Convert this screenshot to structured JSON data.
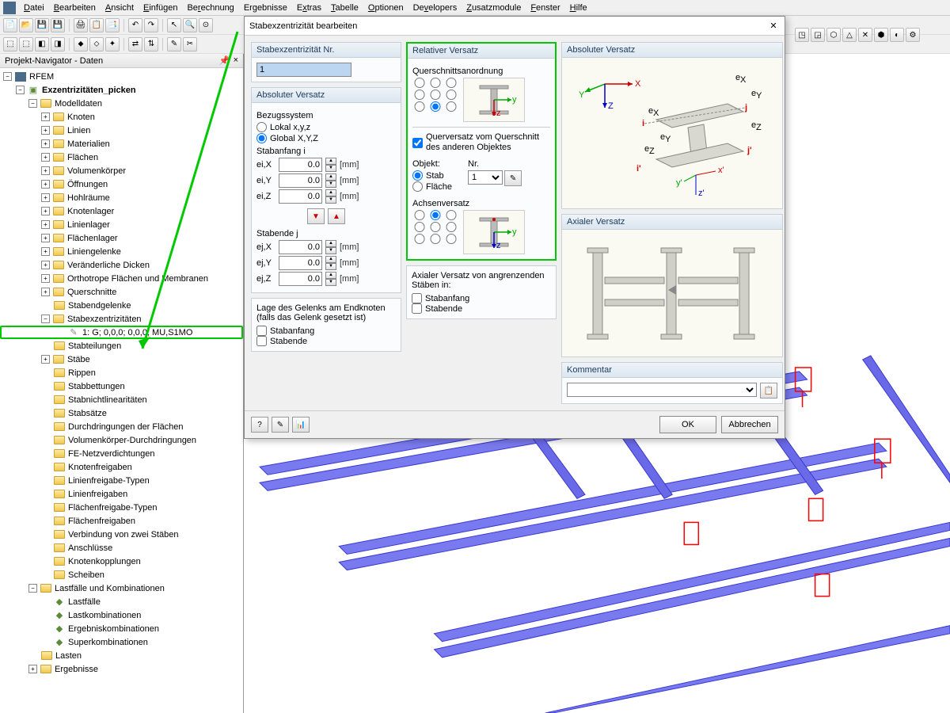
{
  "menu": [
    "Datei",
    "Bearbeiten",
    "Ansicht",
    "Einfügen",
    "Berechnung",
    "Ergebnisse",
    "Extras",
    "Tabelle",
    "Optionen",
    "Developers",
    "Zusatzmodule",
    "Fenster",
    "Hilfe"
  ],
  "navigator": {
    "title": "Projekt-Navigator - Daten",
    "root": "RFEM",
    "project": "Exzentrizitäten_picken",
    "modelldaten": "Modelldaten",
    "items1": [
      "Knoten",
      "Linien",
      "Materialien",
      "Flächen",
      "Volumenkörper",
      "Öffnungen",
      "Hohlräume",
      "Knotenlager",
      "Linienlager",
      "Flächenlager",
      "Liniengelenke",
      "Veränderliche Dicken",
      "Orthotrope Flächen und Membranen"
    ],
    "querschnitte": "Querschnitte",
    "stabendgelenke": "Stabendgelenke",
    "stabexz": "Stabexzentrizitäten",
    "stabexz_item": "1: G; 0,0,0; 0,0,0; MU,S1MO",
    "stabteilungen": "Stabteilungen",
    "items2": [
      "Stäbe",
      "Rippen",
      "Stabbettungen",
      "Stabnichtlinearitäten",
      "Stabsätze",
      "Durchdringungen der Flächen",
      "Volumenkörper-Durchdringungen",
      "FE-Netzverdichtungen",
      "Knotenfreigaben",
      "Linienfreigabe-Typen",
      "Linienfreigaben",
      "Flächenfreigabe-Typen",
      "Flächenfreigaben",
      "Verbindung von zwei Stäben",
      "Anschlüsse",
      "Knotenkopplungen",
      "Scheiben"
    ],
    "lastfalle_group": "Lastfälle und Kombinationen",
    "items3": [
      "Lastfälle",
      "Lastkombinationen",
      "Ergebniskombinationen",
      "Superkombinationen"
    ],
    "lasten": "Lasten",
    "ergebnisse": "Ergebnisse"
  },
  "dialog": {
    "title": "Stabexzentrizität bearbeiten",
    "nr_group": "Stabexzentrizität Nr.",
    "nr_value": "1",
    "abs_versatz": "Absoluter Versatz",
    "bezugssystem": "Bezugssystem",
    "lokal": "Lokal x,y,z",
    "global": "Global X,Y,Z",
    "stabanfang_i": "Stabanfang i",
    "stabende_j": "Stabende j",
    "eix": "ei,X",
    "eiy": "ei,Y",
    "eiz": "ei,Z",
    "ejx": "ej,X",
    "ejy": "ej,Y",
    "ejz": "ej,Z",
    "val": "0.0",
    "unit": "[mm]",
    "lage_gelenk": "Lage des Gelenks am Endknoten (falls das Gelenk gesetzt ist)",
    "cb_stabanfang": "Stabanfang",
    "cb_stabende": "Stabende",
    "rel_versatz": "Relativer Versatz",
    "querschnitt": "Querschnittsanordnung",
    "querversatz": "Querversatz vom Querschnitt des anderen Objektes",
    "objekt": "Objekt:",
    "stab": "Stab",
    "flaeche": "Fläche",
    "nr": "Nr.",
    "nr_val": "1",
    "achsenversatz": "Achsenversatz",
    "axial_von": "Axialer Versatz von angrenzenden Stäben in:",
    "axial_versatz": "Axialer Versatz",
    "kommentar": "Kommentar",
    "ok": "OK",
    "cancel": "Abbrechen"
  },
  "colors": {
    "highlight": "#00c800",
    "beam": "#5a5ae0",
    "beam_edge": "#ff0000"
  }
}
